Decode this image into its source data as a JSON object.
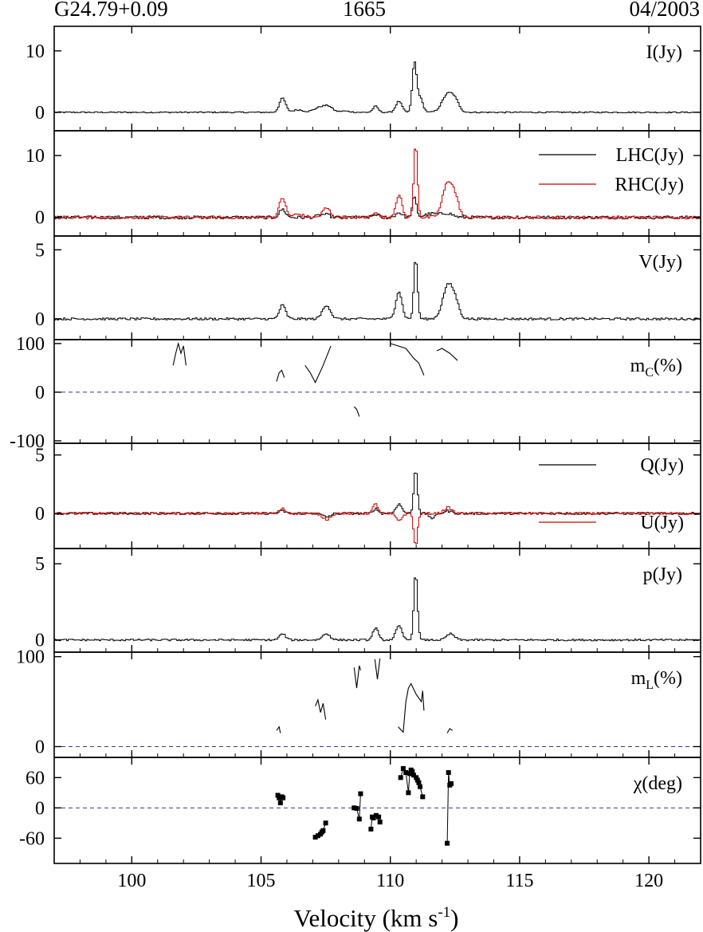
{
  "header": {
    "source": "G24.79+0.09",
    "frequency": "1665",
    "date": "04/2003"
  },
  "chart_data": {
    "type": "line",
    "xlabel": "Velocity (km s",
    "xlabel_sup": "-1",
    "xlabel_close": ")",
    "xlim": [
      97,
      122
    ],
    "xticks": [
      "100",
      "105",
      "110",
      "115",
      "120"
    ],
    "xtick_values": [
      100,
      105,
      110,
      115,
      120
    ],
    "panels": [
      {
        "label": "I(Jy)",
        "ylim": [
          -3,
          14
        ],
        "yticks": [
          "0",
          "10"
        ],
        "ytick_values": [
          0,
          10
        ],
        "series": [
          {
            "color": "#000000",
            "style": "step",
            "peaks": [
              [
                105.8,
                2.3,
                0.12
              ],
              [
                106.4,
                0.4,
                0.2
              ],
              [
                107.3,
                0.9,
                0.25
              ],
              [
                107.6,
                0.6,
                0.15
              ],
              [
                108.2,
                0.2,
                0.2
              ],
              [
                109.4,
                1.0,
                0.1
              ],
              [
                110.3,
                1.8,
                0.12
              ],
              [
                110.9,
                7.6,
                0.08
              ],
              [
                111.1,
                2.5,
                0.12
              ],
              [
                112.2,
                3.0,
                0.22
              ],
              [
                112.5,
                1.2,
                0.15
              ]
            ],
            "noise": 0.1,
            "baseline": 0
          }
        ]
      },
      {
        "label": "",
        "ylim": [
          -3,
          14
        ],
        "yticks": [
          "0",
          "10"
        ],
        "ytick_values": [
          0,
          10
        ],
        "legend": [
          {
            "name": "LHC(Jy)",
            "color": "#000000"
          },
          {
            "name": "RHC(Jy)",
            "color": "#cc0000"
          }
        ],
        "series": [
          {
            "name": "LHC(Jy)",
            "color": "#000000",
            "style": "step",
            "peaks": [
              [
                105.8,
                1.3,
                0.12
              ],
              [
                107.4,
                0.5,
                0.2
              ],
              [
                109.4,
                0.5,
                0.1
              ],
              [
                110.3,
                0.8,
                0.12
              ],
              [
                110.9,
                3.2,
                0.08
              ],
              [
                111.6,
                0.6,
                0.3
              ],
              [
                112.2,
                0.6,
                0.2
              ]
            ],
            "noise": 0.25,
            "baseline": 0
          },
          {
            "name": "RHC(Jy)",
            "color": "#cc0000",
            "style": "step",
            "peaks": [
              [
                105.8,
                3.2,
                0.12
              ],
              [
                106.4,
                0.5,
                0.2
              ],
              [
                107.5,
                1.5,
                0.15
              ],
              [
                109.4,
                1.0,
                0.1
              ],
              [
                110.3,
                3.6,
                0.12
              ],
              [
                110.95,
                12.0,
                0.07
              ],
              [
                112.2,
                5.6,
                0.2
              ],
              [
                112.5,
                2.0,
                0.15
              ]
            ],
            "noise": 0.25,
            "baseline": 0
          }
        ]
      },
      {
        "label": "V(Jy)",
        "ylim": [
          -1.5,
          6
        ],
        "yticks": [
          "0",
          "5"
        ],
        "ytick_values": [
          0,
          5
        ],
        "series": [
          {
            "color": "#000000",
            "style": "step",
            "peaks": [
              [
                105.8,
                1.0,
                0.12
              ],
              [
                107.5,
                1.0,
                0.15
              ],
              [
                110.3,
                2.0,
                0.12
              ],
              [
                110.95,
                4.4,
                0.07
              ],
              [
                112.2,
                2.4,
                0.2
              ],
              [
                112.5,
                0.9,
                0.15
              ]
            ],
            "noise": 0.08,
            "baseline": 0
          }
        ]
      },
      {
        "label": "m",
        "label_sub": "C",
        "label_suffix": "(%)",
        "ylim": [
          -105,
          108
        ],
        "yticks": [
          "-100",
          "0",
          "100"
        ],
        "ytick_values": [
          -100,
          0,
          100
        ],
        "zero_line": true,
        "series": [
          {
            "color": "#000000",
            "style": "segments",
            "segments": [
              [
                [
                  101.6,
                  55
                ],
                [
                  101.7,
                  80
                ],
                [
                  101.8,
                  100
                ],
                [
                  101.9,
                  80
                ],
                [
                  102.0,
                  95
                ],
                [
                  102.1,
                  55
                ]
              ],
              [
                [
                  105.6,
                  22
                ],
                [
                  105.7,
                  40
                ],
                [
                  105.8,
                  45
                ],
                [
                  105.9,
                  30
                ]
              ],
              [
                [
                  106.7,
                  55
                ],
                [
                  106.9,
                  40
                ],
                [
                  107.1,
                  20
                ],
                [
                  107.4,
                  55
                ],
                [
                  107.7,
                  95
                ]
              ],
              [
                [
                  108.6,
                  -30
                ],
                [
                  108.7,
                  -35
                ],
                [
                  108.8,
                  -50
                ]
              ],
              [
                [
                  110.0,
                  100
                ],
                [
                  110.3,
                  95
                ],
                [
                  110.6,
                  90
                ],
                [
                  110.9,
                  70
                ],
                [
                  111.1,
                  60
                ],
                [
                  111.3,
                  35
                ]
              ],
              [
                [
                  111.8,
                  85
                ],
                [
                  112.0,
                  90
                ],
                [
                  112.3,
                  80
                ],
                [
                  112.6,
                  65
                ]
              ]
            ]
          }
        ]
      },
      {
        "label": "",
        "ylim": [
          -3,
          6
        ],
        "yticks": [
          "0",
          "5"
        ],
        "ytick_values": [
          0,
          5
        ],
        "legend": [
          {
            "name": "Q(Jy)",
            "color": "#000000"
          },
          {
            "name": "U(Jy)",
            "color": "#cc0000"
          }
        ],
        "series": [
          {
            "name": "Q(Jy)",
            "color": "#000000",
            "style": "step",
            "peaks": [
              [
                105.8,
                0.2,
                0.12
              ],
              [
                107.5,
                -0.3,
                0.15
              ],
              [
                109.4,
                0.4,
                0.1
              ],
              [
                110.3,
                0.8,
                0.12
              ],
              [
                110.95,
                3.8,
                0.07
              ],
              [
                111.6,
                -0.4,
                0.12
              ],
              [
                112.2,
                0.2,
                0.15
              ]
            ],
            "noise": 0.1,
            "baseline": 0
          },
          {
            "name": "U(Jy)",
            "color": "#cc0000",
            "style": "step",
            "peaks": [
              [
                105.8,
                0.4,
                0.12
              ],
              [
                107.5,
                -0.5,
                0.15
              ],
              [
                109.4,
                0.8,
                0.1
              ],
              [
                110.3,
                -0.6,
                0.12
              ],
              [
                110.95,
                -2.8,
                0.07
              ],
              [
                112.2,
                0.5,
                0.15
              ]
            ],
            "noise": 0.1,
            "baseline": 0
          }
        ]
      },
      {
        "label": "p(Jy)",
        "ylim": [
          -0.8,
          6
        ],
        "yticks": [
          "0",
          "5"
        ],
        "ytick_values": [
          0,
          5
        ],
        "series": [
          {
            "color": "#000000",
            "style": "step",
            "peaks": [
              [
                105.8,
                0.4,
                0.12
              ],
              [
                107.5,
                0.4,
                0.15
              ],
              [
                109.4,
                0.8,
                0.1
              ],
              [
                110.3,
                0.9,
                0.12
              ],
              [
                110.95,
                4.4,
                0.07
              ],
              [
                112.3,
                0.4,
                0.15
              ]
            ],
            "noise": 0.06,
            "baseline": 0
          }
        ]
      },
      {
        "label": "m",
        "label_sub": "L",
        "label_suffix": "(%)",
        "ylim": [
          -12,
          105
        ],
        "yticks": [
          "0",
          "100"
        ],
        "ytick_values": [
          0,
          100
        ],
        "zero_line": true,
        "series": [
          {
            "color": "#000000",
            "style": "segments",
            "segments": [
              [
                [
                  105.6,
                  18
                ],
                [
                  105.7,
                  22
                ],
                [
                  105.75,
                  15
                ]
              ],
              [
                [
                  107.1,
                  45
                ],
                [
                  107.2,
                  52
                ],
                [
                  107.3,
                  38
                ],
                [
                  107.4,
                  48
                ],
                [
                  107.5,
                  30
                ]
              ],
              [
                [
                  108.6,
                  88
                ],
                [
                  108.7,
                  65
                ],
                [
                  108.8,
                  90
                ],
                [
                  108.85,
                  85
                ]
              ],
              [
                [
                  109.4,
                  97
                ],
                [
                  109.5,
                  75
                ],
                [
                  109.6,
                  98
                ]
              ],
              [
                [
                  110.3,
                  22
                ],
                [
                  110.5,
                  16
                ],
                [
                  110.6,
                  50
                ],
                [
                  110.7,
                  65
                ],
                [
                  110.8,
                  70
                ],
                [
                  111.0,
                  58
                ],
                [
                  111.2,
                  50
                ],
                [
                  111.25,
                  62
                ],
                [
                  111.3,
                  40
                ]
              ],
              [
                [
                  112.2,
                  15
                ],
                [
                  112.3,
                  20
                ],
                [
                  112.4,
                  18
                ]
              ]
            ]
          }
        ]
      },
      {
        "label": "χ(deg)",
        "ylim": [
          -110,
          100
        ],
        "yticks": [
          "-60",
          "0",
          "60"
        ],
        "ytick_values": [
          -60,
          0,
          60
        ],
        "zero_line": true,
        "series": [
          {
            "color": "#000000",
            "style": "markers",
            "segments": [
              [
                [
                  105.65,
                  25
                ],
                [
                  105.7,
                  20
                ],
                [
                  105.75,
                  10
                ],
                [
                  105.8,
                  22
                ],
                [
                  105.85,
                  20
                ]
              ],
              [
                [
                  107.1,
                  -58
                ],
                [
                  107.2,
                  -55
                ],
                [
                  107.3,
                  -52
                ],
                [
                  107.35,
                  -48
                ],
                [
                  107.4,
                  -45
                ],
                [
                  107.5,
                  -30
                ]
              ],
              [
                [
                  108.6,
                  0
                ],
                [
                  108.7,
                  -1
                ],
                [
                  108.8,
                  -22
                ],
                [
                  108.85,
                  28
                ]
              ],
              [
                [
                  109.25,
                  -42
                ],
                [
                  109.3,
                  -18
                ],
                [
                  109.35,
                  -20
                ],
                [
                  109.45,
                  -15
                ],
                [
                  109.55,
                  -18
                ],
                [
                  109.6,
                  -28
                ]
              ],
              [
                [
                  110.4,
                  60
                ],
                [
                  110.5,
                  78
                ],
                [
                  110.6,
                  70
                ],
                [
                  110.7,
                  30
                ],
                [
                  110.75,
                  68
                ],
                [
                  110.8,
                  75
                ],
                [
                  110.85,
                  72
                ],
                [
                  110.9,
                  65
                ],
                [
                  111.0,
                  60
                ],
                [
                  111.05,
                  55
                ],
                [
                  111.1,
                  50
                ],
                [
                  111.15,
                  42
                ],
                [
                  111.25,
                  22
                ]
              ],
              [
                [
                  112.2,
                  -70
                ],
                [
                  112.25,
                  70
                ],
                [
                  112.3,
                  45
                ],
                [
                  112.35,
                  48
                ]
              ]
            ]
          }
        ]
      }
    ]
  }
}
